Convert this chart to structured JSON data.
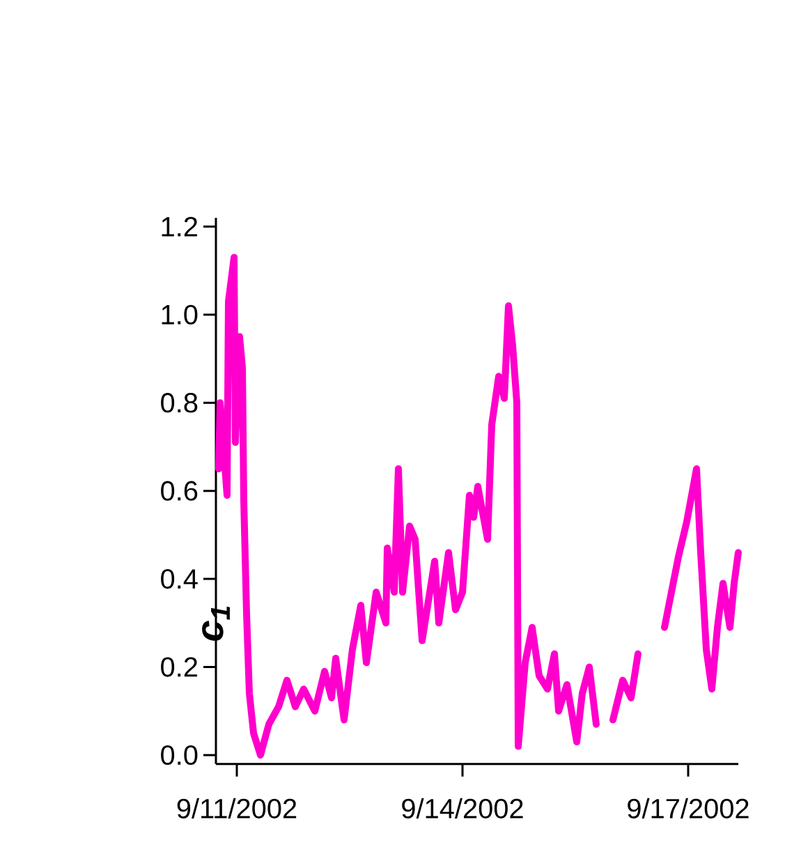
{
  "chart_data": {
    "type": "line",
    "ylabel": "c$_{1}$",
    "color": "#ff00cc",
    "x": [
      "2002-09-10T18:13",
      "2002-09-10T18:40",
      "2002-09-10T20:53",
      "2002-09-10T21:20",
      "2002-09-10T23:07",
      "2002-09-10T23:33",
      "2002-09-11T00:53",
      "2002-09-11T01:47",
      "2002-09-11T02:13",
      "2002-09-11T03:07",
      "2002-09-11T04:00",
      "2002-09-11T05:20",
      "2002-09-11T07:33",
      "2002-09-11T10:13",
      "2002-09-11T13:20",
      "2002-09-11T16:00",
      "2002-09-11T18:40",
      "2002-09-11T21:20",
      "2002-09-12T00:53",
      "2002-09-12T04:00",
      "2002-09-12T06:13",
      "2002-09-12T07:33",
      "2002-09-12T10:13",
      "2002-09-12T12:53",
      "2002-09-12T15:33",
      "2002-09-12T17:20",
      "2002-09-12T20:27",
      "2002-09-12T23:33",
      "2002-09-13T00:00",
      "2002-09-13T02:13",
      "2002-09-13T03:33",
      "2002-09-13T04:53",
      "2002-09-13T07:07",
      "2002-09-13T08:53",
      "2002-09-13T11:07",
      "2002-09-13T15:07",
      "2002-09-13T16:27",
      "2002-09-13T19:33",
      "2002-09-13T21:47",
      "2002-09-14T00:00",
      "2002-09-14T02:13",
      "2002-09-14T03:33",
      "2002-09-14T04:53",
      "2002-09-14T08:00",
      "2002-09-14T09:20",
      "2002-09-14T11:33",
      "2002-09-14T13:20",
      "2002-09-14T14:40",
      "2002-09-14T16:00",
      "2002-09-14T17:20",
      "2002-09-14T17:47",
      "2002-09-14T20:00",
      "2002-09-14T22:13",
      "2002-09-15T00:27",
      "2002-09-15T03:07",
      "2002-09-15T05:20",
      "2002-09-15T06:40",
      "2002-09-15T09:20",
      "2002-09-15T12:27",
      "2002-09-15T14:13",
      "2002-09-15T16:27",
      "2002-09-15T18:40",
      "2002-09-15T21:20",
      "2002-09-16T00:00",
      "2002-09-16T03:07",
      "2002-09-16T05:47",
      "2002-09-16T08:00",
      "2002-09-16T12:00",
      "2002-09-16T16:27",
      "2002-09-16T18:40",
      "2002-09-16T20:53",
      "2002-09-16T23:33",
      "2002-09-17T02:40",
      "2002-09-17T04:00",
      "2002-09-17T05:47",
      "2002-09-17T07:33",
      "2002-09-17T09:20",
      "2002-09-17T11:07",
      "2002-09-17T13:20",
      "2002-09-17T14:40",
      "2002-09-17T16:00"
    ],
    "values": [
      0.65,
      0.8,
      0.59,
      1.03,
      1.13,
      0.71,
      0.95,
      0.88,
      0.58,
      0.32,
      0.14,
      0.05,
      0.0,
      0.07,
      0.11,
      0.17,
      0.11,
      0.15,
      0.1,
      0.19,
      0.13,
      0.22,
      0.08,
      0.24,
      0.34,
      0.21,
      0.37,
      0.3,
      0.47,
      0.37,
      0.65,
      0.37,
      0.52,
      0.49,
      0.26,
      0.44,
      0.3,
      0.46,
      0.33,
      0.37,
      0.59,
      0.54,
      0.61,
      0.49,
      0.75,
      0.86,
      0.81,
      1.02,
      0.93,
      0.8,
      0.02,
      0.21,
      0.29,
      0.18,
      0.15,
      0.23,
      0.1,
      0.16,
      0.03,
      0.14,
      0.2,
      0.07,
      null,
      0.08,
      0.17,
      0.13,
      0.23,
      null,
      0.29,
      0.37,
      0.45,
      0.53,
      0.65,
      0.46,
      0.24,
      0.15,
      0.29,
      0.39,
      0.29,
      0.39,
      0.46
    ],
    "xlim": [
      "2002-09-10T17:20",
      "2002-09-17T16:00"
    ],
    "xticks": [
      {
        "value": "2002-09-11",
        "label": "9/11/2002"
      },
      {
        "value": "2002-09-14",
        "label": "9/14/2002"
      },
      {
        "value": "2002-09-17",
        "label": "9/17/2002"
      }
    ],
    "ylim": [
      -0.02,
      1.22
    ],
    "yticks": [
      {
        "value": 0,
        "label": "0.0"
      },
      {
        "value": 0.2,
        "label": "0.2"
      },
      {
        "value": 0.4,
        "label": "0.4"
      },
      {
        "value": 0.6,
        "label": "0.6"
      },
      {
        "value": 0.8,
        "label": "0.8"
      },
      {
        "value": 1.0,
        "label": "1.0"
      },
      {
        "value": 1.2,
        "label": "1.2"
      }
    ]
  }
}
